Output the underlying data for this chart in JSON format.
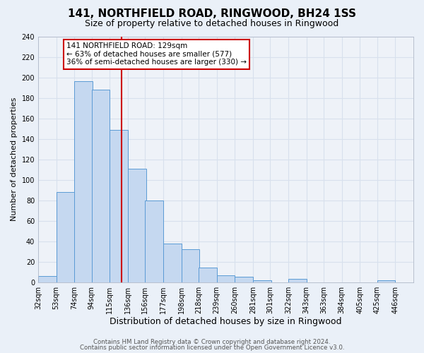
{
  "title": "141, NORTHFIELD ROAD, RINGWOOD, BH24 1SS",
  "subtitle": "Size of property relative to detached houses in Ringwood",
  "xlabel": "Distribution of detached houses by size in Ringwood",
  "ylabel": "Number of detached properties",
  "bar_left_edges": [
    32,
    53,
    74,
    94,
    115,
    136,
    156,
    177,
    198,
    218,
    239,
    260,
    281,
    301,
    322,
    343,
    363,
    384,
    405,
    425
  ],
  "bar_heights": [
    6,
    88,
    196,
    188,
    149,
    111,
    80,
    38,
    32,
    14,
    7,
    5,
    2,
    0,
    3,
    0,
    0,
    0,
    0,
    2
  ],
  "bin_width": 21,
  "bar_color": "#c5d8f0",
  "bar_edge_color": "#5b9bd5",
  "red_line_x": 129,
  "annotation_title": "141 NORTHFIELD ROAD: 129sqm",
  "annotation_line1": "← 63% of detached houses are smaller (577)",
  "annotation_line2": "36% of semi-detached houses are larger (330) →",
  "annotation_box_color": "#ffffff",
  "annotation_box_edge": "#cc0000",
  "red_line_color": "#cc0000",
  "ylim": [
    0,
    240
  ],
  "yticks": [
    0,
    20,
    40,
    60,
    80,
    100,
    120,
    140,
    160,
    180,
    200,
    220,
    240
  ],
  "xtick_labels": [
    "32sqm",
    "53sqm",
    "74sqm",
    "94sqm",
    "115sqm",
    "136sqm",
    "156sqm",
    "177sqm",
    "198sqm",
    "218sqm",
    "239sqm",
    "260sqm",
    "281sqm",
    "301sqm",
    "322sqm",
    "343sqm",
    "363sqm",
    "384sqm",
    "405sqm",
    "425sqm",
    "446sqm"
  ],
  "xtick_positions": [
    32,
    53,
    74,
    94,
    115,
    136,
    156,
    177,
    198,
    218,
    239,
    260,
    281,
    301,
    322,
    343,
    363,
    384,
    405,
    425,
    446
  ],
  "footer1": "Contains HM Land Registry data © Crown copyright and database right 2024.",
  "footer2": "Contains public sector information licensed under the Open Government Licence v3.0.",
  "bg_color": "#eaf0f8",
  "plot_bg_color": "#eef2f8",
  "grid_color": "#d8e0ed",
  "title_fontsize": 11,
  "subtitle_fontsize": 9,
  "xlabel_fontsize": 9,
  "ylabel_fontsize": 8,
  "tick_fontsize": 7,
  "annot_fontsize": 7.5,
  "footer_fontsize": 6.2
}
